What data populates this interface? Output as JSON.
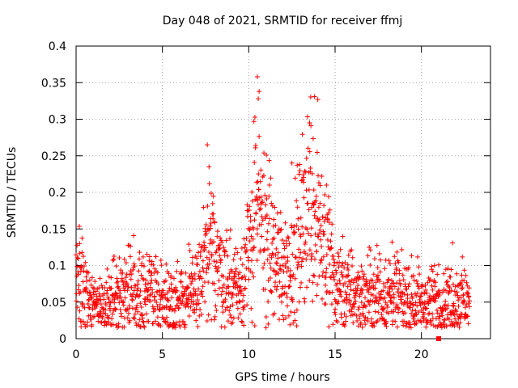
{
  "chart_data": {
    "type": "scatter",
    "title": "Day 048 of 2021, SRMTID for receiver ffmj",
    "xlabel": "GPS time / hours",
    "ylabel": "SRMTID / TECUs",
    "xlim": [
      0,
      24
    ],
    "ylim": [
      0,
      0.4
    ],
    "x_ticks": [
      0,
      5,
      10,
      15,
      20
    ],
    "x_tick_labels": [
      "0",
      "5",
      "10",
      "15",
      "20"
    ],
    "y_ticks": [
      0,
      0.05,
      0.1,
      0.15,
      0.2,
      0.25,
      0.3,
      0.35,
      0.4
    ],
    "y_tick_labels": [
      "0",
      "0.05",
      "0.1",
      "0.15",
      "0.2",
      "0.25",
      "0.3",
      "0.35",
      "0.4"
    ],
    "grid": true,
    "marker": "plus",
    "color": "#ff0000",
    "series": [
      {
        "name": "SRMTID",
        "trend": {
          "x": [
            0,
            0.5,
            1,
            1.5,
            2,
            2.5,
            3,
            3.5,
            4,
            4.5,
            5,
            5.5,
            6,
            6.5,
            7,
            7.5,
            8,
            8.5,
            9,
            9.5,
            10,
            10.5,
            11,
            11.5,
            12,
            12.5,
            13,
            13.5,
            14,
            14.5,
            15,
            15.5,
            16,
            16.5,
            17,
            17.5,
            18,
            18.5,
            19,
            19.5,
            20,
            20.5,
            21,
            21.5,
            22,
            22.5,
            22.8
          ],
          "y": [
            0.095,
            0.06,
            0.045,
            0.042,
            0.048,
            0.065,
            0.075,
            0.065,
            0.06,
            0.062,
            0.055,
            0.05,
            0.055,
            0.06,
            0.07,
            0.1,
            0.12,
            0.09,
            0.07,
            0.075,
            0.12,
            0.17,
            0.15,
            0.11,
            0.1,
            0.1,
            0.14,
            0.2,
            0.17,
            0.12,
            0.08,
            0.065,
            0.065,
            0.06,
            0.06,
            0.065,
            0.06,
            0.065,
            0.055,
            0.055,
            0.05,
            0.05,
            0.05,
            0.05,
            0.055,
            0.05,
            0.05
          ]
        },
        "notable_points": [
          {
            "x": 10.5,
            "y": 0.358
          },
          {
            "x": 10.6,
            "y": 0.338
          },
          {
            "x": 10.55,
            "y": 0.328
          },
          {
            "x": 13.8,
            "y": 0.331
          },
          {
            "x": 14.0,
            "y": 0.327
          },
          {
            "x": 10.3,
            "y": 0.297
          },
          {
            "x": 13.6,
            "y": 0.291
          },
          {
            "x": 7.6,
            "y": 0.265
          },
          {
            "x": 7.7,
            "y": 0.235
          },
          {
            "x": 12.5,
            "y": 0.24
          },
          {
            "x": 14.5,
            "y": 0.21
          },
          {
            "x": 18.3,
            "y": 0.132
          },
          {
            "x": 21.8,
            "y": 0.131
          },
          {
            "x": 21.0,
            "y": 0.101
          },
          {
            "x": 0.2,
            "y": 0.13
          },
          {
            "x": 21.0,
            "y": 0.0
          }
        ]
      }
    ]
  }
}
